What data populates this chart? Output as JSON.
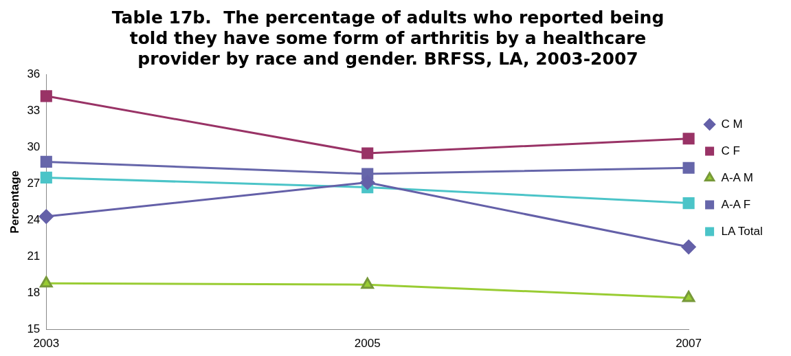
{
  "chart_data": {
    "type": "line",
    "title": "Table 17b.  The percentage of adults who reported being told they have some form of arthritis by a healthcare provider by race and gender. BRFSS, LA, 2003-2007",
    "ylabel": "Percentage",
    "categories": [
      "2003",
      "2005",
      "2007"
    ],
    "ylim": [
      15,
      36
    ],
    "yticks": [
      15,
      18,
      21,
      24,
      27,
      30,
      33,
      36
    ],
    "grid": false,
    "legend": "right",
    "series": [
      {
        "name": "C M",
        "color": "#6460a8",
        "marker": "diamond",
        "values": [
          24.3,
          27.1,
          21.8
        ]
      },
      {
        "name": "C F",
        "color": "#993366",
        "marker": "square",
        "values": [
          34.2,
          29.5,
          30.7
        ]
      },
      {
        "name": "A-A M",
        "color": "#99cc33",
        "marker": "triangle",
        "values": [
          18.8,
          18.7,
          17.6
        ]
      },
      {
        "name": "A-A F",
        "color": "#6666aa",
        "marker": "square",
        "values": [
          28.8,
          27.8,
          28.3
        ]
      },
      {
        "name": "LA Total",
        "color": "#4bc4c8",
        "marker": "square",
        "values": [
          27.5,
          26.7,
          25.4
        ]
      }
    ]
  }
}
